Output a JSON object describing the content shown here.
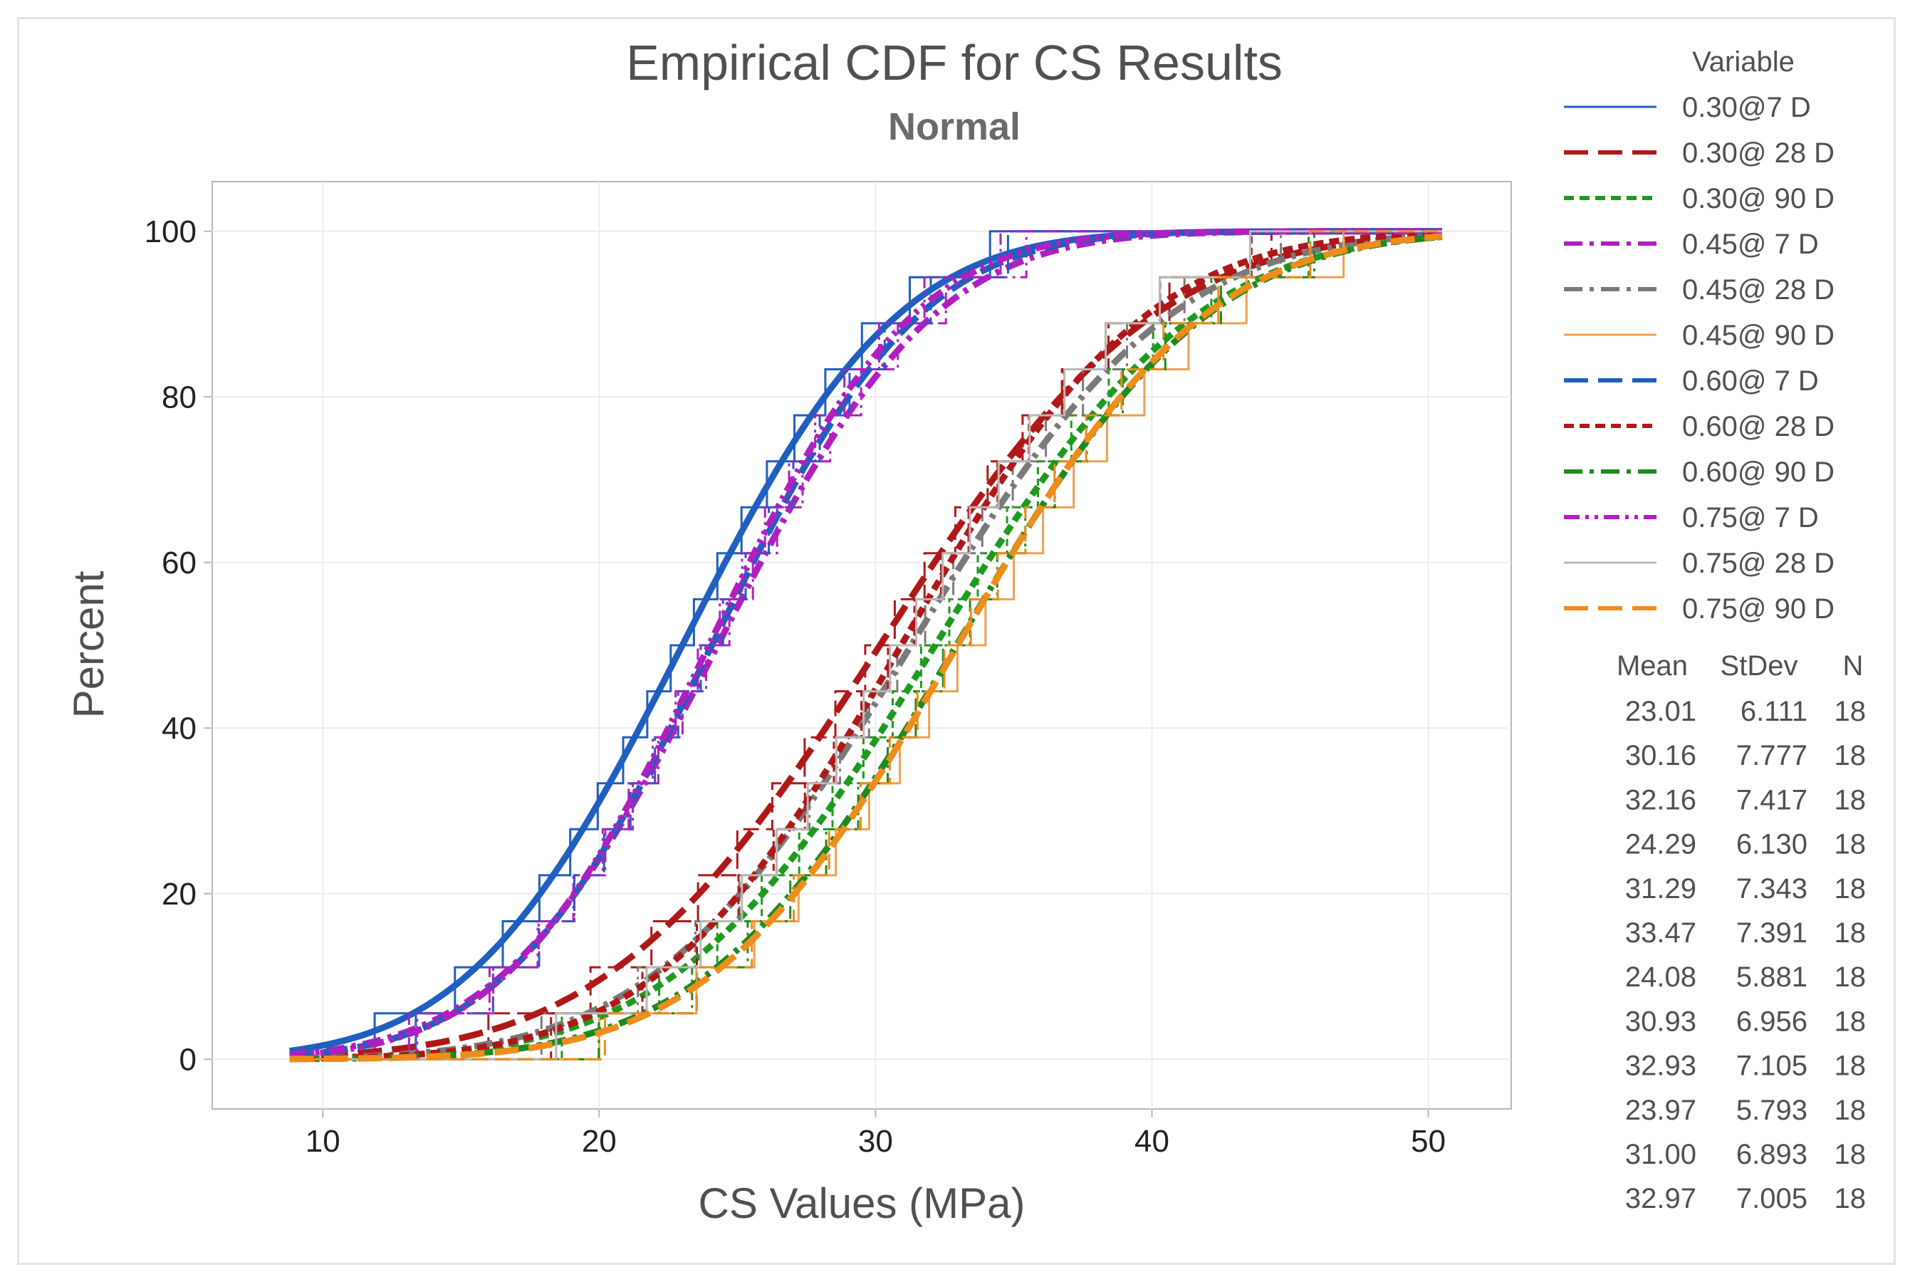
{
  "chart_data": {
    "type": "line",
    "title": "Empirical CDF for CS Results",
    "subtitle": "Normal",
    "xlabel": "CS  Values (MPa)",
    "ylabel": "Percent",
    "xlim": [
      6,
      53
    ],
    "ylim": [
      -6,
      106
    ],
    "xticks": [
      "10",
      "20",
      "30",
      "40",
      "50"
    ],
    "xtick_values": [
      10,
      20,
      30,
      40,
      50
    ],
    "yticks": [
      "0",
      "20",
      "40",
      "60",
      "80",
      "100"
    ],
    "ytick_values": [
      0,
      20,
      40,
      60,
      80,
      100
    ],
    "grid": true,
    "curve_range": [
      8.8,
      50.5
    ],
    "legend": {
      "title": "Variable",
      "stats_header": {
        "mean": "Mean",
        "stdev": "StDev",
        "n": "N"
      },
      "placement": "right"
    },
    "series": [
      {
        "name": "0.30@7 D",
        "color": "#1f5fbf",
        "dash": "solid",
        "mean": 23.01,
        "stdev": 6.111,
        "n": 18,
        "mean_text": "23.01",
        "stdev_text": "6.111",
        "n_text": "18"
      },
      {
        "name": "0.30@ 28 D",
        "color": "#b01818",
        "dash": "long-dash",
        "mean": 30.16,
        "stdev": 7.777,
        "n": 18,
        "mean_text": "30.16",
        "stdev_text": "7.777",
        "n_text": "18"
      },
      {
        "name": "0.30@  90 D",
        "color": "#1e9a1e",
        "dash": "short-dash",
        "mean": 32.16,
        "stdev": 7.417,
        "n": 18,
        "mean_text": "32.16",
        "stdev_text": "7.417",
        "n_text": "18"
      },
      {
        "name": "0.45@ 7 D",
        "color": "#b01fc0",
        "dash": "dash-dot",
        "mean": 24.29,
        "stdev": 6.13,
        "n": 18,
        "mean_text": "24.29",
        "stdev_text": "6.130",
        "n_text": "18"
      },
      {
        "name": "0.45@ 28 D",
        "color": "#7a7a7a",
        "dash": "dash-dot",
        "mean": 31.29,
        "stdev": 7.343,
        "n": 18,
        "mean_text": "31.29",
        "stdev_text": "7.343",
        "n_text": "18"
      },
      {
        "name": "0.45@ 90 D",
        "color": "#f0a050",
        "dash": "solid-thin",
        "mean": 33.47,
        "stdev": 7.391,
        "n": 18,
        "mean_text": "33.47",
        "stdev_text": "7.391",
        "n_text": "18"
      },
      {
        "name": "0.60@ 7 D",
        "color": "#1f5fbf",
        "dash": "long-dash",
        "mean": 24.08,
        "stdev": 5.881,
        "n": 18,
        "mean_text": "24.08",
        "stdev_text": "5.881",
        "n_text": "18"
      },
      {
        "name": "0.60@ 28 D",
        "color": "#b01818",
        "dash": "short-dash",
        "mean": 30.93,
        "stdev": 6.956,
        "n": 18,
        "mean_text": "30.93",
        "stdev_text": "6.956",
        "n_text": "18"
      },
      {
        "name": "0.60@ 90 D",
        "color": "#1e8a1e",
        "dash": "dash-dot",
        "mean": 32.93,
        "stdev": 7.105,
        "n": 18,
        "mean_text": "32.93",
        "stdev_text": "7.105",
        "n_text": "18"
      },
      {
        "name": "0.75@ 7 D",
        "color": "#b01fc0",
        "dash": "dash-dot-dot",
        "mean": 23.97,
        "stdev": 5.793,
        "n": 18,
        "mean_text": "23.97",
        "stdev_text": "5.793",
        "n_text": "18"
      },
      {
        "name": "0.75@ 28 D",
        "color": "#b8b8b8",
        "dash": "solid-thin",
        "mean": 31.0,
        "stdev": 6.893,
        "n": 18,
        "mean_text": "31.00",
        "stdev_text": "6.893",
        "n_text": "18"
      },
      {
        "name": "0.75@ 90 D",
        "color": "#ee8c1c",
        "dash": "long-dash",
        "mean": 32.97,
        "stdev": 7.005,
        "n": 18,
        "mean_text": "32.97",
        "stdev_text": "7.005",
        "n_text": "18"
      }
    ]
  }
}
